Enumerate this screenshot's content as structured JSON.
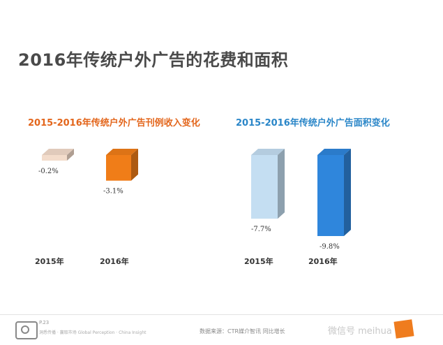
{
  "page": {
    "title": "2016年传统户外广告的花费和面积"
  },
  "colors": {
    "left_title": "#e3661c",
    "right_title": "#2a86c8",
    "orange": "#f07d18",
    "blue": "#2f86dc",
    "light_blue": "#c4def2",
    "peach": "#f3dccb"
  },
  "chart_data": [
    {
      "type": "bar",
      "title": "2015-2016年传统户外广告刊例收入变化",
      "categories": [
        "2015年",
        "2016年"
      ],
      "values": [
        -0.2,
        -3.1
      ],
      "labels": [
        "-0.2%",
        "-3.1%"
      ],
      "colors": [
        "#f3dccb",
        "#f07d18"
      ],
      "unit": "%"
    },
    {
      "type": "bar",
      "title": "2015-2016年传统户外广告面积变化",
      "categories": [
        "2015年",
        "2016年"
      ],
      "values": [
        -7.7,
        -9.8
      ],
      "labels": [
        "-7.7%",
        "-9.8%"
      ],
      "colors": [
        "#c4def2",
        "#2f86dc"
      ],
      "unit": "%"
    }
  ],
  "footer": {
    "page_number": "P.23",
    "slogan": "洞悉传播 · 赢取市场 Global Perception · China Insight",
    "source": "数据来源：CTR媒介智讯   同比增长",
    "watermark": "微信号 meihua"
  }
}
